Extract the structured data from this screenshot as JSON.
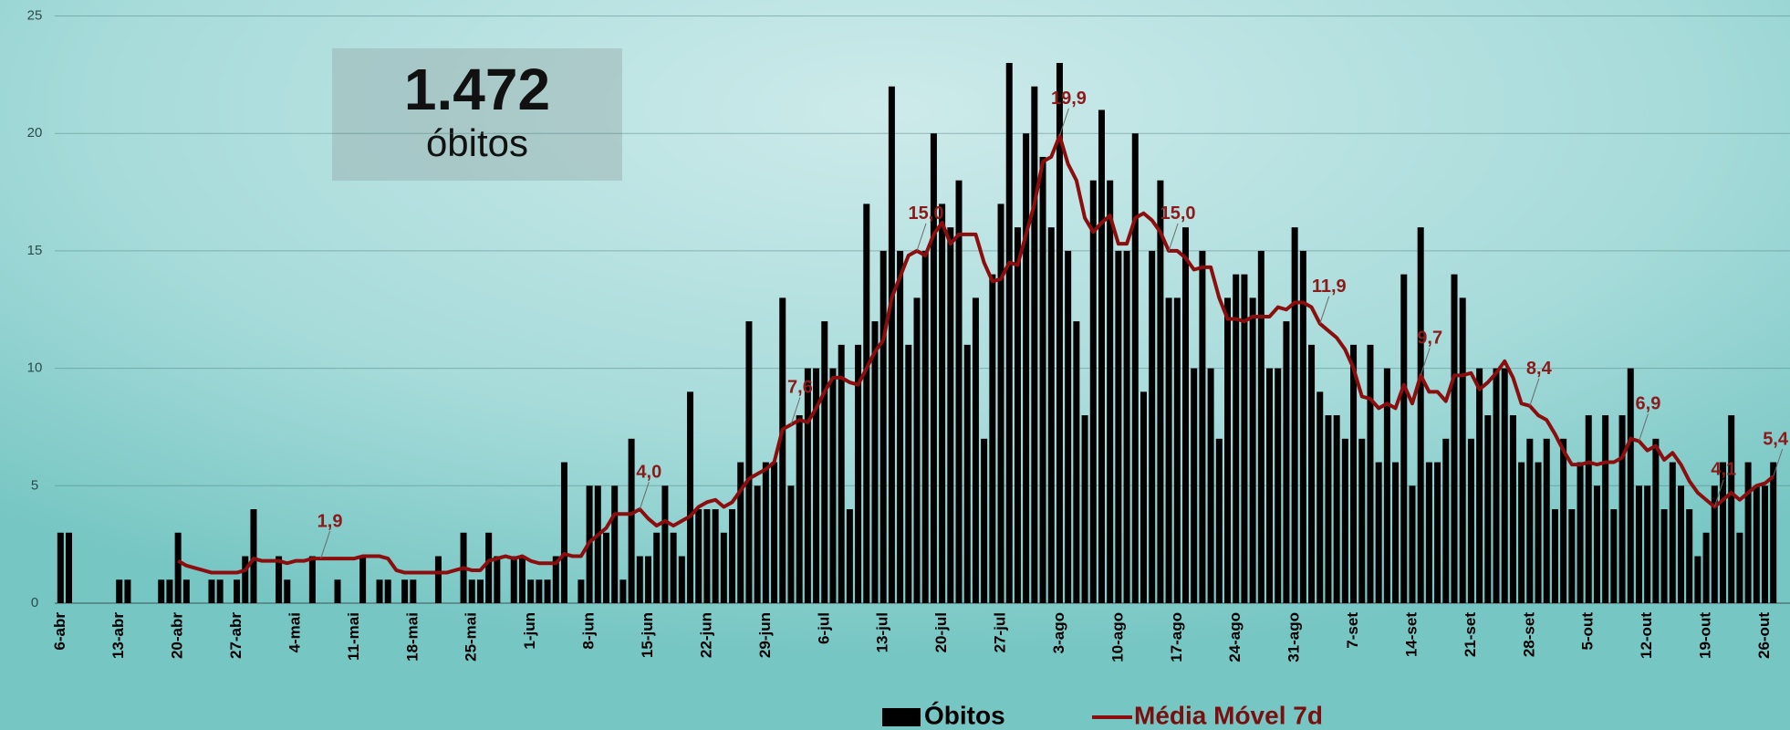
{
  "chart_data": {
    "type": "bar",
    "annotations": [
      "1.472",
      "óbitos"
    ],
    "categories": [
      "6-abr",
      null,
      null,
      null,
      null,
      null,
      null,
      "13-abr",
      null,
      null,
      null,
      null,
      null,
      null,
      "20-abr",
      null,
      null,
      null,
      null,
      null,
      null,
      "27-abr",
      null,
      null,
      null,
      null,
      null,
      null,
      "4-mai",
      null,
      null,
      null,
      null,
      null,
      null,
      "11-mai",
      null,
      null,
      null,
      null,
      null,
      null,
      "18-mai",
      null,
      null,
      null,
      null,
      null,
      null,
      "25-mai",
      null,
      null,
      null,
      null,
      null,
      null,
      "1-jun",
      null,
      null,
      null,
      null,
      null,
      null,
      "8-jun",
      null,
      null,
      null,
      null,
      null,
      null,
      "15-jun",
      null,
      null,
      null,
      null,
      null,
      null,
      "22-jun",
      null,
      null,
      null,
      null,
      null,
      null,
      "29-jun",
      null,
      null,
      null,
      null,
      null,
      null,
      "6-jul",
      null,
      null,
      null,
      null,
      null,
      null,
      "13-jul",
      null,
      null,
      null,
      null,
      null,
      null,
      "20-jul",
      null,
      null,
      null,
      null,
      null,
      null,
      "27-jul",
      null,
      null,
      null,
      null,
      null,
      null,
      "3-ago",
      null,
      null,
      null,
      null,
      null,
      null,
      "10-ago",
      null,
      null,
      null,
      null,
      null,
      null,
      "17-ago",
      null,
      null,
      null,
      null,
      null,
      null,
      "24-ago",
      null,
      null,
      null,
      null,
      null,
      null,
      "31-ago",
      null,
      null,
      null,
      null,
      null,
      null,
      "7-set",
      null,
      null,
      null,
      null,
      null,
      null,
      "14-set",
      null,
      null,
      null,
      null,
      null,
      null,
      "21-set",
      null,
      null,
      null,
      null,
      null,
      null,
      "28-set",
      null,
      null,
      null,
      null,
      null,
      null,
      "5-out",
      null,
      null,
      null,
      null,
      null,
      null,
      "12-out",
      null,
      null,
      null,
      null,
      null,
      null,
      "19-out",
      null,
      null,
      null,
      null,
      null,
      null,
      "26-out",
      null
    ],
    "series": [
      {
        "name": "Óbitos",
        "type": "bar",
        "color": "#000000",
        "values": [
          3,
          3,
          0,
          0,
          0,
          0,
          0,
          1,
          1,
          0,
          0,
          0,
          1,
          1,
          3,
          1,
          0,
          0,
          1,
          1,
          0,
          1,
          2,
          4,
          0,
          0,
          2,
          1,
          0,
          0,
          2,
          0,
          0,
          1,
          0,
          0,
          2,
          0,
          1,
          1,
          0,
          1,
          1,
          0,
          0,
          2,
          0,
          0,
          3,
          1,
          1,
          3,
          2,
          0,
          2,
          2,
          1,
          1,
          1,
          2,
          6,
          0,
          1,
          5,
          5,
          3,
          5,
          1,
          7,
          2,
          2,
          3,
          5,
          3,
          2,
          9,
          4,
          4,
          4,
          3,
          4,
          6,
          12,
          5,
          6,
          6,
          13,
          5,
          8,
          10,
          10,
          12,
          10,
          11,
          4,
          11,
          17,
          12,
          15,
          22,
          15,
          11,
          13,
          15,
          20,
          17,
          16,
          18,
          11,
          13,
          7,
          14,
          17,
          23,
          16,
          20,
          22,
          19,
          16,
          23,
          15,
          12,
          8,
          18,
          21,
          18,
          15,
          15,
          20,
          9,
          15,
          18,
          13,
          13,
          16,
          10,
          15,
          10,
          7,
          13,
          14,
          14,
          13,
          15,
          10,
          10,
          12,
          16,
          15,
          11,
          9,
          8,
          8,
          7,
          11,
          7,
          11,
          6,
          10,
          6,
          14,
          5,
          16,
          6,
          6,
          7,
          14,
          13,
          7,
          10,
          8,
          10,
          10,
          8,
          6,
          7,
          6,
          7,
          4,
          7,
          4,
          6,
          8,
          5,
          8,
          4,
          8,
          10,
          5,
          5,
          7,
          4,
          6,
          5,
          4,
          2,
          3,
          5,
          6,
          8,
          3,
          6,
          5,
          5,
          6
        ]
      },
      {
        "name": "Média Móvel 7d",
        "type": "line",
        "color": "#8b0d0d",
        "values": [
          null,
          null,
          null,
          null,
          null,
          null,
          null,
          null,
          null,
          null,
          null,
          null,
          null,
          null,
          1.8,
          1.6,
          1.5,
          1.4,
          1.3,
          1.3,
          1.3,
          1.3,
          1.4,
          1.9,
          1.8,
          1.8,
          1.8,
          1.7,
          1.8,
          1.8,
          1.9,
          1.9,
          1.9,
          1.9,
          1.9,
          1.9,
          2.0,
          2.0,
          2.0,
          1.9,
          1.4,
          1.3,
          1.3,
          1.3,
          1.3,
          1.3,
          1.3,
          1.4,
          1.5,
          1.4,
          1.4,
          1.8,
          1.9,
          2.0,
          1.9,
          2.0,
          1.8,
          1.7,
          1.7,
          1.7,
          2.1,
          2.0,
          2.0,
          2.6,
          2.9,
          3.2,
          3.8,
          3.8,
          3.8,
          4.0,
          3.6,
          3.3,
          3.5,
          3.3,
          3.5,
          3.7,
          4.1,
          4.3,
          4.4,
          4.1,
          4.3,
          4.8,
          5.3,
          5.5,
          5.7,
          6.0,
          7.4,
          7.6,
          7.8,
          7.7,
          8.3,
          9.0,
          9.6,
          9.6,
          9.4,
          9.3,
          10.0,
          10.7,
          11.2,
          13.0,
          13.9,
          14.8,
          15.0,
          14.8,
          15.7,
          16.2,
          15.3,
          15.7,
          15.7,
          15.7,
          14.5,
          13.7,
          13.8,
          14.5,
          14.4,
          15.7,
          17.0,
          18.8,
          19.0,
          19.9,
          18.7,
          18.0,
          16.4,
          15.8,
          16.2,
          16.5,
          15.3,
          15.3,
          16.4,
          16.6,
          16.3,
          15.8,
          15.0,
          15.0,
          14.7,
          14.2,
          14.3,
          14.3,
          13.0,
          12.1,
          12.1,
          12.0,
          12.2,
          12.2,
          12.2,
          12.6,
          12.5,
          12.8,
          12.8,
          12.6,
          11.9,
          11.6,
          11.3,
          10.8,
          10.0,
          8.8,
          8.7,
          8.3,
          8.5,
          8.3,
          9.3,
          8.5,
          9.7,
          9.0,
          9.0,
          8.6,
          9.7,
          9.7,
          9.8,
          9.1,
          9.4,
          9.8,
          10.3,
          9.6,
          8.5,
          8.4,
          8.0,
          7.8,
          7.2,
          6.5,
          5.9,
          5.9,
          6.0,
          5.9,
          6.0,
          6.0,
          6.2,
          7.0,
          6.9,
          6.5,
          6.7,
          6.1,
          6.4,
          5.9,
          5.2,
          4.7,
          4.4,
          4.1,
          4.4,
          4.7,
          4.4,
          4.7,
          5.0,
          5.1,
          5.4
        ],
        "value_labels": [
          null,
          null,
          null,
          null,
          null,
          null,
          null,
          null,
          null,
          null,
          null,
          null,
          null,
          null,
          null,
          null,
          null,
          null,
          null,
          null,
          null,
          null,
          null,
          null,
          null,
          null,
          null,
          null,
          null,
          null,
          null,
          "1,9",
          null,
          null,
          null,
          null,
          null,
          null,
          null,
          null,
          null,
          null,
          null,
          null,
          null,
          null,
          null,
          null,
          null,
          null,
          null,
          null,
          null,
          null,
          null,
          null,
          null,
          null,
          null,
          null,
          null,
          null,
          null,
          null,
          null,
          null,
          null,
          null,
          null,
          "4,0",
          null,
          null,
          null,
          null,
          null,
          null,
          null,
          null,
          null,
          null,
          null,
          null,
          null,
          null,
          null,
          null,
          null,
          "7,6",
          null,
          null,
          null,
          null,
          null,
          null,
          null,
          null,
          null,
          null,
          null,
          null,
          null,
          null,
          "15,0",
          null,
          null,
          null,
          null,
          null,
          null,
          null,
          null,
          null,
          null,
          null,
          null,
          null,
          null,
          null,
          null,
          "19,9",
          null,
          null,
          null,
          null,
          null,
          null,
          null,
          null,
          null,
          null,
          null,
          null,
          "15,0",
          null,
          null,
          null,
          null,
          null,
          null,
          null,
          null,
          null,
          null,
          null,
          null,
          null,
          null,
          null,
          null,
          null,
          "11,9",
          null,
          null,
          null,
          null,
          null,
          null,
          null,
          null,
          null,
          null,
          null,
          "9,7",
          null,
          null,
          null,
          null,
          null,
          null,
          null,
          null,
          null,
          null,
          null,
          null,
          "8,4",
          null,
          null,
          null,
          null,
          null,
          null,
          null,
          null,
          null,
          null,
          null,
          null,
          "6,9",
          null,
          null,
          null,
          null,
          null,
          null,
          null,
          null,
          "4,1",
          null,
          null,
          null,
          null,
          null,
          null,
          "5,4"
        ]
      }
    ],
    "ylim": [
      0,
      25
    ],
    "yticks": [
      0,
      5,
      10,
      15,
      20,
      25
    ],
    "grid": true,
    "legend": "bottom"
  }
}
